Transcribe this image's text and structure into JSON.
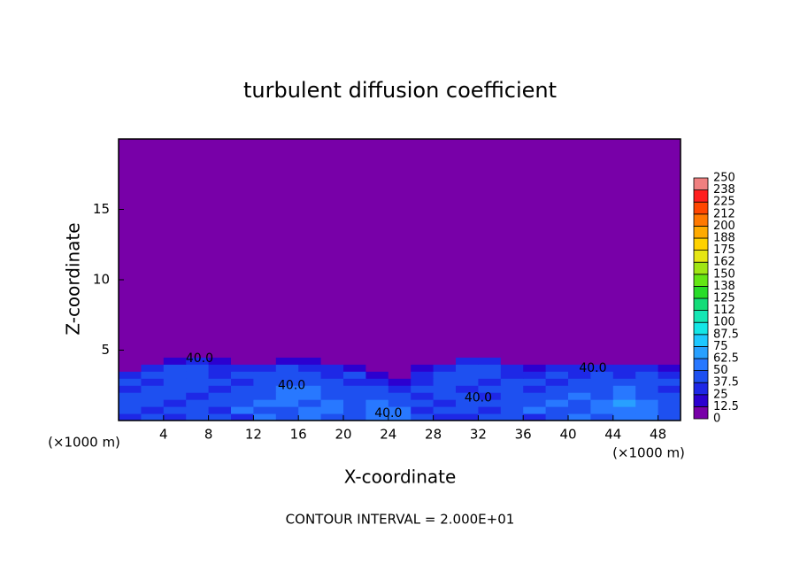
{
  "chart_data": {
    "type": "contour",
    "title": "turbulent diffusion coefficient",
    "xlabel": "X-coordinate",
    "ylabel": "Z-coordinate",
    "x_unit": "(×1000 m)",
    "footer": "CONTOUR INTERVAL = 2.000E+01",
    "xlim": [
      0,
      50
    ],
    "ylim": [
      0,
      20
    ],
    "xticks": [
      4,
      8,
      12,
      16,
      20,
      24,
      28,
      32,
      36,
      40,
      44,
      48
    ],
    "yticks": [
      5,
      10,
      15
    ],
    "x_edges": [
      0,
      2,
      4,
      6,
      8,
      10,
      12,
      14,
      16,
      18,
      20,
      22,
      24,
      26,
      28,
      30,
      32,
      34,
      36,
      38,
      40,
      42,
      44,
      46,
      48,
      50
    ],
    "z_edges": [
      0,
      0.5,
      1,
      1.5,
      2,
      2.5,
      3,
      3.5,
      4,
      4.5,
      5
    ],
    "field": [
      [
        35,
        40,
        30,
        45,
        40,
        35,
        50,
        40,
        55,
        45,
        40,
        55,
        60,
        40,
        35,
        30,
        40,
        45,
        35,
        40,
        55,
        45,
        50,
        60,
        45
      ],
      [
        40,
        35,
        45,
        40,
        35,
        50,
        45,
        40,
        60,
        50,
        45,
        60,
        55,
        35,
        40,
        45,
        35,
        40,
        50,
        45,
        40,
        50,
        60,
        55,
        40
      ],
      [
        45,
        40,
        35,
        40,
        45,
        40,
        50,
        55,
        45,
        55,
        40,
        50,
        45,
        40,
        35,
        40,
        45,
        40,
        45,
        50,
        45,
        55,
        65,
        50,
        45
      ],
      [
        40,
        45,
        40,
        35,
        40,
        45,
        40,
        50,
        55,
        40,
        45,
        45,
        40,
        35,
        45,
        40,
        35,
        45,
        40,
        45,
        50,
        45,
        55,
        45,
        40
      ],
      [
        35,
        40,
        45,
        40,
        35,
        40,
        45,
        55,
        50,
        45,
        40,
        40,
        30,
        40,
        40,
        35,
        45,
        40,
        35,
        40,
        45,
        40,
        50,
        40,
        35
      ],
      [
        40,
        35,
        40,
        45,
        40,
        35,
        40,
        45,
        40,
        40,
        35,
        30,
        20,
        35,
        45,
        40,
        35,
        45,
        40,
        35,
        40,
        45,
        40,
        45,
        40
      ],
      [
        30,
        40,
        45,
        40,
        35,
        40,
        45,
        40,
        45,
        35,
        40,
        20,
        10,
        30,
        40,
        45,
        40,
        35,
        30,
        40,
        35,
        40,
        35,
        40,
        35
      ],
      [
        10,
        25,
        40,
        45,
        35,
        30,
        35,
        40,
        35,
        30,
        20,
        5,
        0,
        15,
        30,
        45,
        40,
        30,
        15,
        35,
        30,
        25,
        30,
        35,
        20
      ],
      [
        0,
        5,
        20,
        30,
        15,
        5,
        10,
        20,
        15,
        5,
        0,
        0,
        0,
        0,
        10,
        30,
        25,
        10,
        0,
        5,
        10,
        5,
        10,
        10,
        0
      ],
      [
        0,
        0,
        5,
        10,
        0,
        0,
        0,
        5,
        0,
        0,
        0,
        0,
        0,
        0,
        0,
        10,
        5,
        0,
        0,
        0,
        0,
        0,
        0,
        0,
        0
      ]
    ],
    "levels": [
      0,
      12.5,
      25,
      37.5,
      50,
      62.5,
      75,
      87.5,
      100,
      {
        "value": 112.5,
        "label": "112"
      },
      125,
      {
        "value": 137.5,
        "label": "138"
      },
      150,
      {
        "value": 162.5,
        "label": "162"
      },
      175,
      {
        "value": 187.5,
        "label": "188"
      },
      200,
      {
        "value": 212.5,
        "label": "212"
      },
      225,
      {
        "value": 237.5,
        "label": "238"
      },
      250
    ],
    "colors": [
      "#7800a8",
      "#2c00d0",
      "#1e28e6",
      "#1e50f0",
      "#2878ff",
      "#28a0ff",
      "#1ec8ff",
      "#14e6e6",
      "#14e6b4",
      "#14dc78",
      "#28dc28",
      "#64e614",
      "#a0e614",
      "#e6e614",
      "#ffd200",
      "#ffaa00",
      "#ff7800",
      "#ff4600",
      "#ff1e1e",
      "#f08080"
    ],
    "contour_labels": [
      {
        "text": "40.0",
        "x": 7.2,
        "z": 4.4
      },
      {
        "text": "40.0",
        "x": 15.4,
        "z": 2.5
      },
      {
        "text": "40.0",
        "x": 24,
        "z": 0.5
      },
      {
        "text": "40.0",
        "x": 32,
        "z": 1.6
      },
      {
        "text": "40.0",
        "x": 42.2,
        "z": 3.7
      }
    ]
  }
}
